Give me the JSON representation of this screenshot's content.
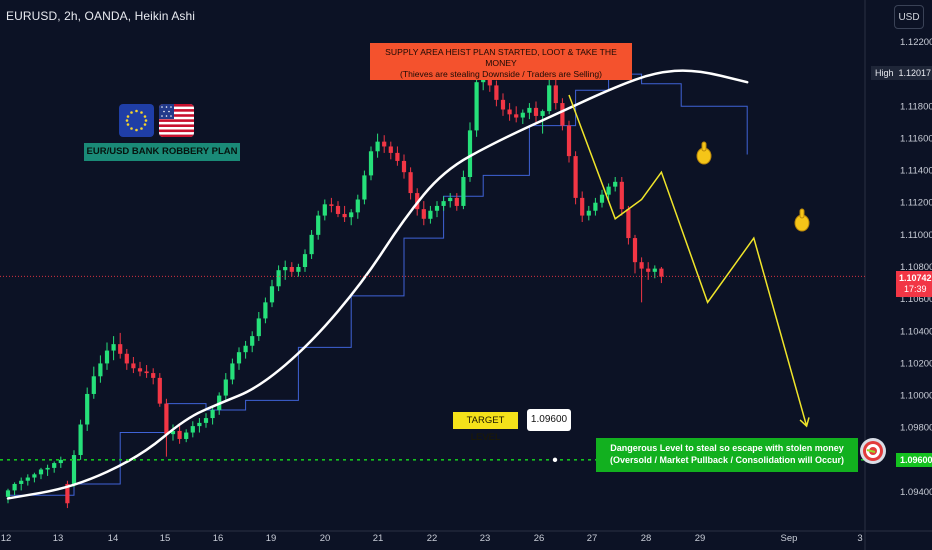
{
  "header": {
    "symbol_title": "EURUSD, 2h, OANDA, Heikin Ashi",
    "currency_button": "USD"
  },
  "colors": {
    "background": "#0c1225",
    "bull_candle": "#26e07a",
    "bear_candle": "#f23645",
    "ema_slow": "#ffffff",
    "stepped_line": "#3f63d6",
    "projection": "#f0e52a",
    "target_line": "#14c21f",
    "current_price_line": "#f23645"
  },
  "annotations": {
    "supply_box_line1": "SUPPLY AREA HEIST PLAN STARTED, LOOT & TAKE THE MONEY",
    "supply_box_line2": "(Thieves are stealing Downside / Traders are Selling)",
    "plan_label": "EUR/USD BANK ROBBERY PLAN",
    "target_label": "TARGET LEVEL",
    "target_value": "1.09600",
    "danger_line1": "Dangerous Level to steal so escape with stolen money",
    "danger_line2": "(Oversold / Market Pullback / Consolidation will Occur)",
    "flag_left_icon": "eu-flag-icon",
    "flag_right_icon": "us-flag-icon",
    "target_icon": "target-bullseye-icon",
    "hand_icon": "pointing-hand-icon"
  },
  "price_tags": {
    "high_label": "High",
    "high_value": "1.12017",
    "current_value": "1.10742",
    "countdown": "17:39",
    "target_value": "1.09600"
  },
  "chart_data": {
    "type": "candlestick",
    "title": "EURUSD, 2h, OANDA, Heikin Ashi",
    "x_ticks": [
      "12",
      "13",
      "14",
      "15",
      "16",
      "19",
      "20",
      "21",
      "22",
      "23",
      "26",
      "27",
      "28",
      "29",
      "Sep",
      "3"
    ],
    "y_ticks": [
      "1.12200",
      "1.12000",
      "1.11800",
      "1.11600",
      "1.11400",
      "1.11200",
      "1.11000",
      "1.10800",
      "1.10600",
      "1.10400",
      "1.10200",
      "1.10000",
      "1.09800",
      "1.09600",
      "1.09400"
    ],
    "ylim": [
      1.0928,
      1.1235
    ],
    "levels": {
      "high": 1.12017,
      "current": 1.10742,
      "target": 1.096
    },
    "candles": [
      [
        1.0937,
        1.0942,
        1.0933,
        1.0941
      ],
      [
        1.0941,
        1.0946,
        1.0938,
        1.0945
      ],
      [
        1.0945,
        1.0949,
        1.0941,
        1.0947
      ],
      [
        1.0947,
        1.0951,
        1.0944,
        1.0949
      ],
      [
        1.0949,
        1.0952,
        1.0946,
        1.0951
      ],
      [
        1.0951,
        1.0955,
        1.0948,
        1.0954
      ],
      [
        1.0954,
        1.0957,
        1.095,
        1.0955
      ],
      [
        1.0955,
        1.0959,
        1.0952,
        1.0958
      ],
      [
        1.0958,
        1.0962,
        1.0955,
        1.096
      ],
      [
        1.0945,
        1.0947,
        1.093,
        1.0933
      ],
      [
        1.0945,
        1.0966,
        1.0943,
        1.0963
      ],
      [
        1.0963,
        1.0985,
        1.096,
        1.0982
      ],
      [
        1.0982,
        1.1005,
        1.0978,
        1.1001
      ],
      [
        1.1001,
        1.1018,
        1.0998,
        1.1012
      ],
      [
        1.1012,
        1.1025,
        1.1008,
        1.102
      ],
      [
        1.102,
        1.1033,
        1.1016,
        1.1028
      ],
      [
        1.1028,
        1.1037,
        1.1022,
        1.1032
      ],
      [
        1.1032,
        1.1039,
        1.1023,
        1.1026
      ],
      [
        1.1026,
        1.1029,
        1.1016,
        1.102
      ],
      [
        1.102,
        1.1024,
        1.1014,
        1.1017
      ],
      [
        1.1017,
        1.1021,
        1.1012,
        1.1015
      ],
      [
        1.1015,
        1.1019,
        1.1011,
        1.1014
      ],
      [
        1.1014,
        1.1017,
        1.1007,
        1.1011
      ],
      [
        1.1011,
        1.1014,
        1.0993,
        1.0995
      ],
      [
        1.0995,
        1.0998,
        1.0962,
        1.0976
      ],
      [
        1.0976,
        1.0982,
        1.0972,
        1.0978
      ],
      [
        1.0978,
        1.0981,
        1.097,
        1.0973
      ],
      [
        1.0973,
        1.0979,
        1.0971,
        1.0977
      ],
      [
        1.0977,
        1.0984,
        1.0974,
        1.0981
      ],
      [
        1.0981,
        1.0986,
        1.0977,
        1.0983
      ],
      [
        1.0983,
        1.0989,
        1.098,
        1.0986
      ],
      [
        1.0986,
        1.0993,
        1.0982,
        1.0991
      ],
      [
        1.0991,
        1.1002,
        1.0988,
        1.1
      ],
      [
        1.1,
        1.1014,
        1.0997,
        1.101
      ],
      [
        1.101,
        1.1023,
        1.1007,
        1.102
      ],
      [
        1.102,
        1.103,
        1.1016,
        1.1027
      ],
      [
        1.1027,
        1.1034,
        1.1023,
        1.1031
      ],
      [
        1.1031,
        1.104,
        1.1027,
        1.1037
      ],
      [
        1.1037,
        1.1052,
        1.1034,
        1.1048
      ],
      [
        1.1048,
        1.1061,
        1.1045,
        1.1058
      ],
      [
        1.1058,
        1.1072,
        1.1055,
        1.1068
      ],
      [
        1.1068,
        1.1081,
        1.1065,
        1.1078
      ],
      [
        1.1078,
        1.1084,
        1.1072,
        1.108
      ],
      [
        1.108,
        1.1083,
        1.1074,
        1.1077
      ],
      [
        1.1077,
        1.1082,
        1.1074,
        1.108
      ],
      [
        1.108,
        1.1091,
        1.1077,
        1.1088
      ],
      [
        1.1088,
        1.1103,
        1.1085,
        1.11
      ],
      [
        1.11,
        1.1115,
        1.1097,
        1.1112
      ],
      [
        1.1112,
        1.1122,
        1.1109,
        1.1119
      ],
      [
        1.1119,
        1.1123,
        1.1114,
        1.1118
      ],
      [
        1.1118,
        1.1121,
        1.1111,
        1.1113
      ],
      [
        1.1113,
        1.1118,
        1.1108,
        1.1111
      ],
      [
        1.1111,
        1.1116,
        1.1106,
        1.1114
      ],
      [
        1.1114,
        1.1125,
        1.111,
        1.1122
      ],
      [
        1.1122,
        1.114,
        1.1119,
        1.1137
      ],
      [
        1.1137,
        1.1155,
        1.1134,
        1.1152
      ],
      [
        1.1152,
        1.1163,
        1.1148,
        1.1158
      ],
      [
        1.1158,
        1.1162,
        1.1151,
        1.1155
      ],
      [
        1.1155,
        1.1158,
        1.1147,
        1.1151
      ],
      [
        1.1151,
        1.1155,
        1.1143,
        1.1146
      ],
      [
        1.1146,
        1.115,
        1.1135,
        1.1139
      ],
      [
        1.1139,
        1.1142,
        1.1122,
        1.1126
      ],
      [
        1.1126,
        1.1129,
        1.1112,
        1.1116
      ],
      [
        1.1116,
        1.1121,
        1.1106,
        1.111
      ],
      [
        1.111,
        1.1118,
        1.1107,
        1.1115
      ],
      [
        1.1115,
        1.1121,
        1.1111,
        1.1118
      ],
      [
        1.1118,
        1.1124,
        1.1115,
        1.1121
      ],
      [
        1.1121,
        1.1126,
        1.1117,
        1.1123
      ],
      [
        1.1123,
        1.1126,
        1.1115,
        1.1118
      ],
      [
        1.1118,
        1.114,
        1.1116,
        1.1136
      ],
      [
        1.1136,
        1.117,
        1.1133,
        1.1165
      ],
      [
        1.1165,
        1.12,
        1.1161,
        1.1195
      ],
      [
        1.1195,
        1.121,
        1.119,
        1.1202
      ],
      [
        1.1202,
        1.1205,
        1.1189,
        1.1193
      ],
      [
        1.1193,
        1.1196,
        1.118,
        1.1184
      ],
      [
        1.1184,
        1.1188,
        1.1174,
        1.1178
      ],
      [
        1.1178,
        1.1182,
        1.1171,
        1.1175
      ],
      [
        1.1175,
        1.118,
        1.117,
        1.1173
      ],
      [
        1.1173,
        1.1178,
        1.1169,
        1.1176
      ],
      [
        1.1176,
        1.1182,
        1.1172,
        1.1179
      ],
      [
        1.1179,
        1.1183,
        1.117,
        1.1174
      ],
      [
        1.1174,
        1.1178,
        1.1163,
        1.1177
      ],
      [
        1.1177,
        1.1197,
        1.1175,
        1.1193
      ],
      [
        1.1193,
        1.1198,
        1.1178,
        1.1182
      ],
      [
        1.1182,
        1.1185,
        1.1165,
        1.1168
      ],
      [
        1.1168,
        1.1171,
        1.1145,
        1.1149
      ],
      [
        1.1149,
        1.1152,
        1.1119,
        1.1123
      ],
      [
        1.1123,
        1.1127,
        1.1108,
        1.1112
      ],
      [
        1.1112,
        1.1118,
        1.1109,
        1.1115
      ],
      [
        1.1115,
        1.1123,
        1.1112,
        1.112
      ],
      [
        1.112,
        1.1128,
        1.1117,
        1.1125
      ],
      [
        1.1125,
        1.1132,
        1.1122,
        1.113
      ],
      [
        1.113,
        1.1136,
        1.1127,
        1.1133
      ],
      [
        1.1133,
        1.1136,
        1.1112,
        1.1116
      ],
      [
        1.1116,
        1.1118,
        1.1094,
        1.1098
      ],
      [
        1.1098,
        1.11,
        1.1076,
        1.1083
      ],
      [
        1.1083,
        1.1086,
        1.1058,
        1.1079
      ],
      [
        1.1079,
        1.1083,
        1.1072,
        1.1077
      ],
      [
        1.1077,
        1.1081,
        1.1073,
        1.1079
      ],
      [
        1.1079,
        1.108,
        1.107,
        1.1074
      ]
    ],
    "ema_white": [
      [
        0,
        1.0936
      ],
      [
        10,
        1.0943
      ],
      [
        20,
        1.0962
      ],
      [
        27,
        1.0986
      ],
      [
        32,
        1.0995
      ],
      [
        38,
        1.1005
      ],
      [
        46,
        1.1033
      ],
      [
        54,
        1.1072
      ],
      [
        60,
        1.111
      ],
      [
        66,
        1.114
      ],
      [
        74,
        1.1158
      ],
      [
        84,
        1.1177
      ],
      [
        92,
        1.1192
      ],
      [
        98,
        1.1201
      ],
      [
        104,
        1.1203
      ],
      [
        112,
        1.1195
      ]
    ],
    "stepped_line": [
      [
        0,
        1.0938
      ],
      [
        10,
        1.0945
      ],
      [
        17,
        1.0977
      ],
      [
        24,
        1.0995
      ],
      [
        30,
        1.0991
      ],
      [
        36,
        1.0997
      ],
      [
        44,
        1.103
      ],
      [
        52,
        1.1062
      ],
      [
        60,
        1.1098
      ],
      [
        66,
        1.1124
      ],
      [
        72,
        1.1137
      ],
      [
        79,
        1.1168
      ],
      [
        86,
        1.119
      ],
      [
        91,
        1.12
      ],
      [
        96,
        1.1194
      ],
      [
        102,
        1.118
      ],
      [
        112,
        1.115
      ]
    ],
    "projection": [
      [
        85,
        1.1187
      ],
      [
        92,
        1.111
      ],
      [
        96,
        1.1122
      ],
      [
        99,
        1.1139
      ],
      [
        106,
        1.1058
      ],
      [
        113,
        1.1098
      ],
      [
        121,
        1.0981
      ]
    ]
  }
}
